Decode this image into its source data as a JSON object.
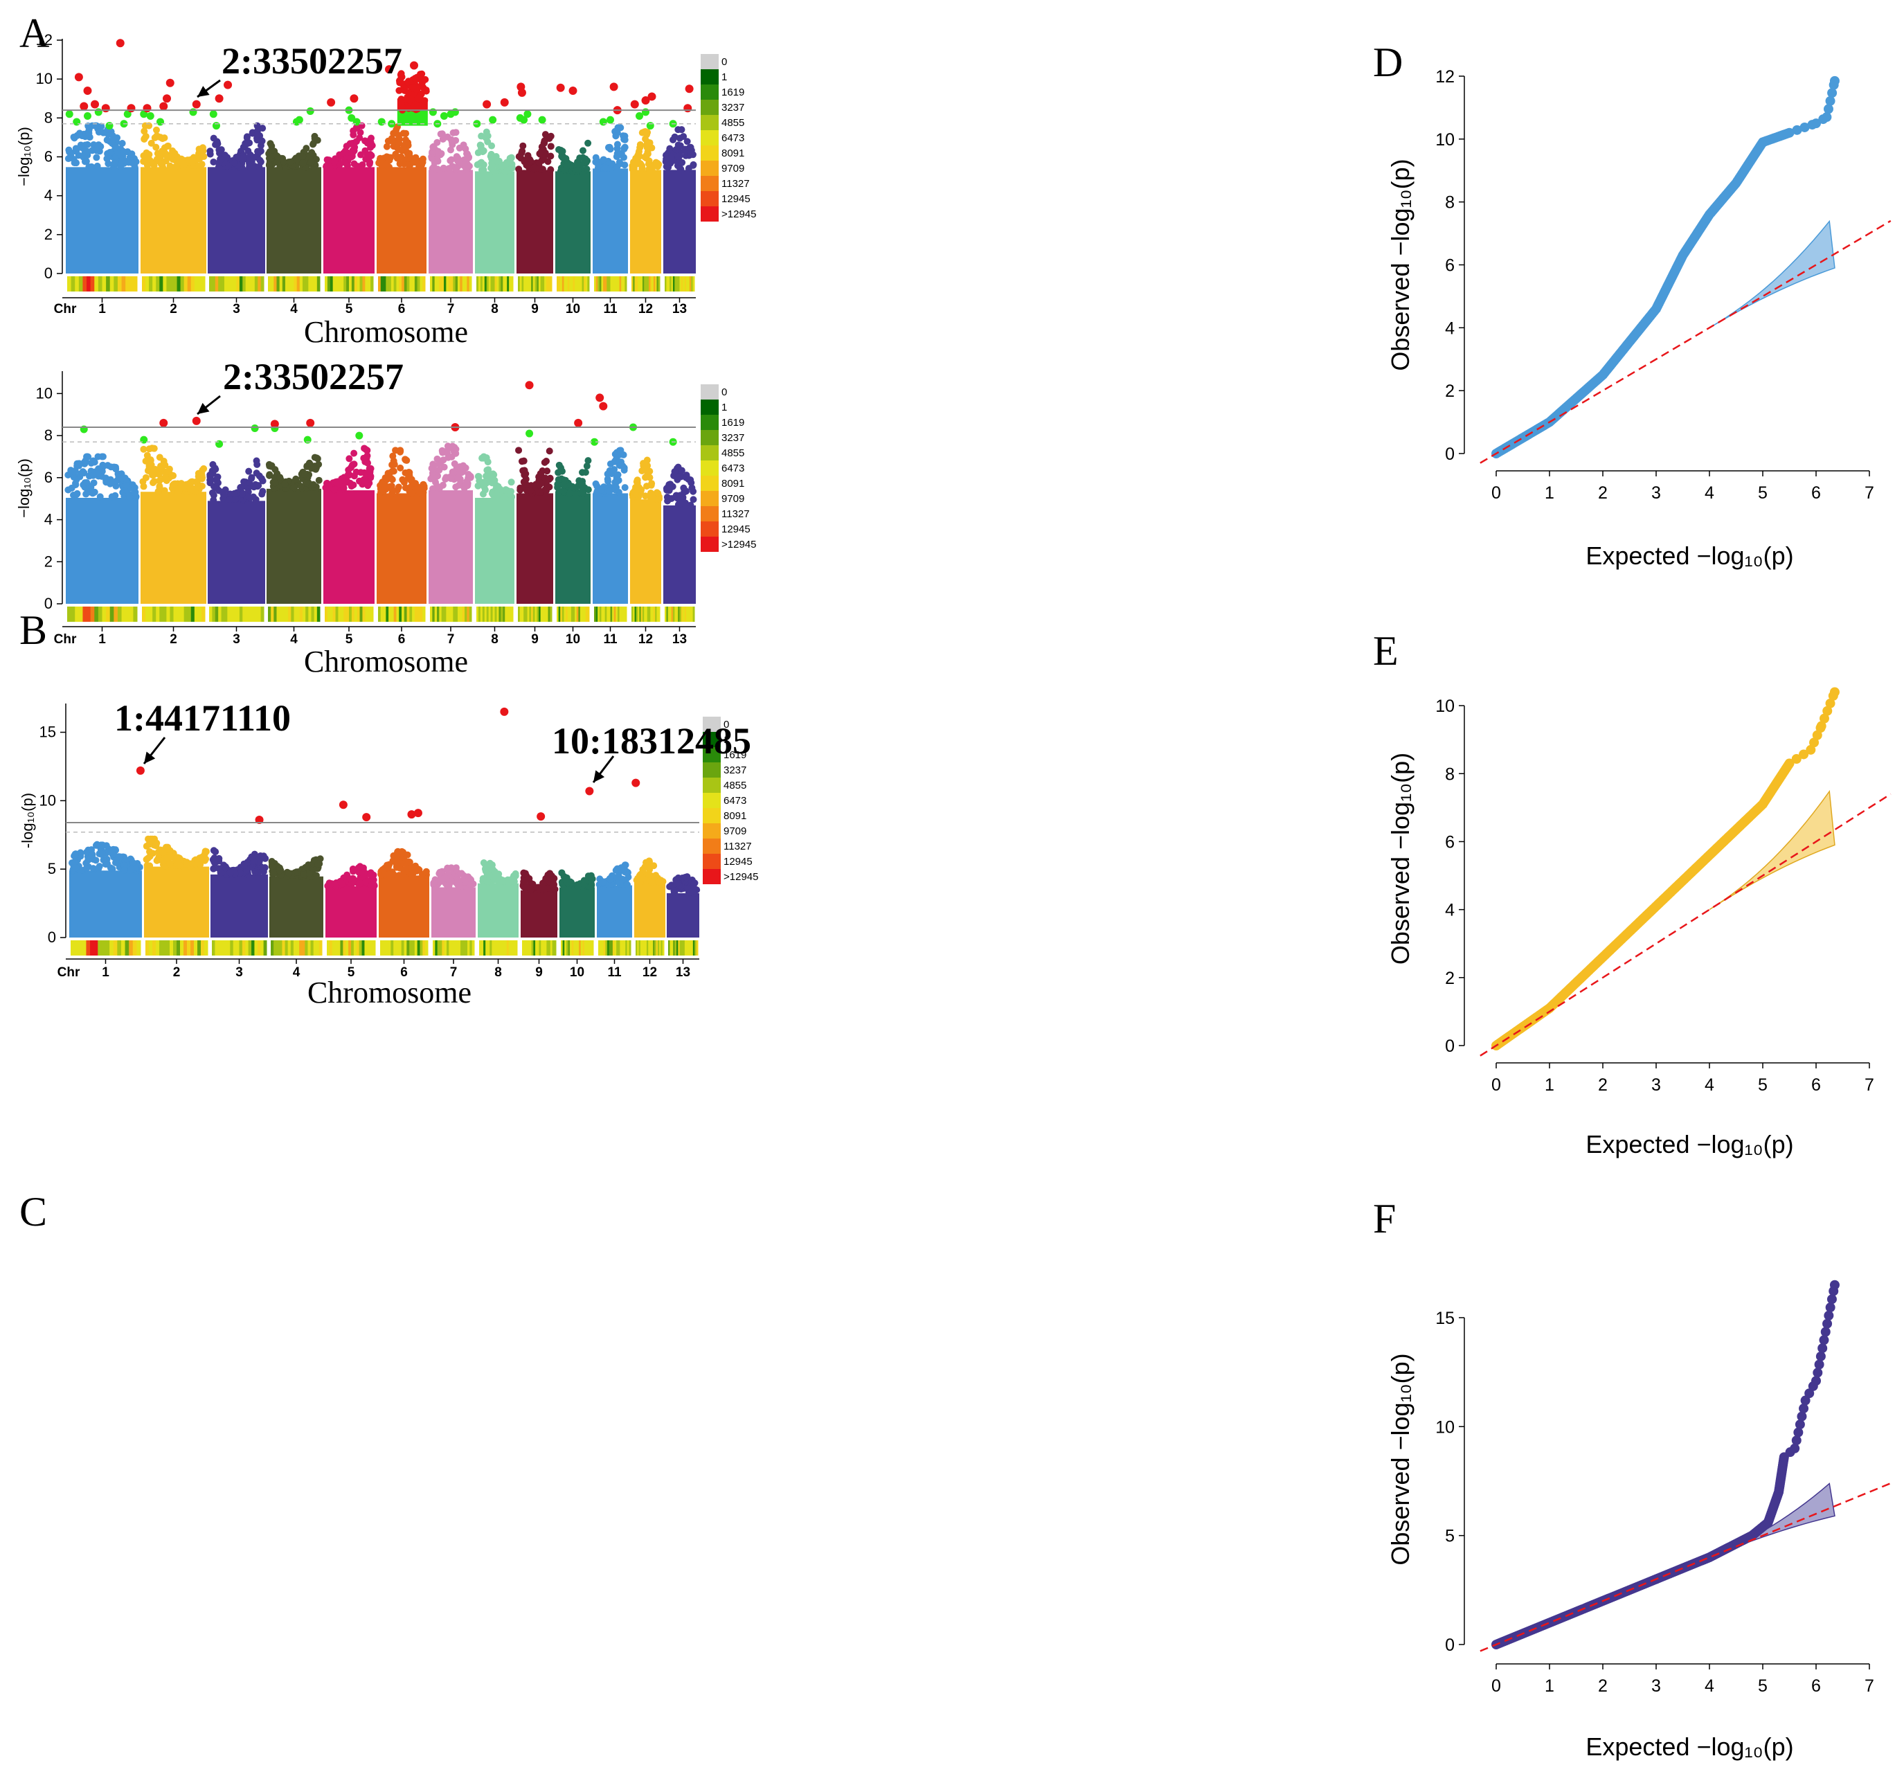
{
  "panel_letters": [
    "A",
    "B",
    "C",
    "D",
    "E",
    "F"
  ],
  "colors": {
    "chromosomes": [
      "#4393d7",
      "#f5bd24",
      "#453893",
      "#4b532d",
      "#d5166b",
      "#e5661a",
      "#d583b7",
      "#84d3a9",
      "#7b1830",
      "#22735a",
      "#4393d7",
      "#f5bd24",
      "#453893"
    ],
    "above_threshold": "#e8161a",
    "near_threshold": "#2ee81e",
    "threshold_solid": "#888888",
    "threshold_dashed": "#bbbbbb",
    "qq_points": [
      "#4a9ad8",
      "#f5bd24",
      "#44378f"
    ],
    "qq_line": "#e8161a",
    "density_scale": [
      "#d0d0d0",
      "#006400",
      "#2a8a0a",
      "#6aa50f",
      "#a9c515",
      "#e4e21a",
      "#f2d41a",
      "#f5aa1a",
      "#f27d18",
      "#ee4b17",
      "#e8161a"
    ]
  },
  "legend_labels": [
    "0",
    "1",
    "1619",
    "3237",
    "4855",
    "6473",
    "8091",
    "9709",
    "11327",
    "12945",
    ">12945"
  ],
  "chart_data": [
    {
      "type": "scatter",
      "subtype": "manhattan",
      "panel": "A",
      "xlabel": "Chromosome",
      "ylabel": "−log₁₀(p)",
      "chr_axis_label": "Chr",
      "categories": [
        "1",
        "2",
        "3",
        "4",
        "5",
        "6",
        "7",
        "8",
        "9",
        "10",
        "11",
        "12",
        "13"
      ],
      "ylim": [
        0,
        12
      ],
      "yticks": [
        0,
        2,
        4,
        6,
        8,
        10,
        12
      ],
      "thresholds": {
        "solid": 8.4,
        "dashed": 7.7
      },
      "chromosome_peak": [
        7.6,
        7.6,
        7.6,
        7.6,
        7.6,
        7.6,
        7.4,
        7.3,
        7.4,
        7.3,
        7.5,
        7.4,
        7.4
      ],
      "annotation": {
        "label": "2:33502257",
        "chromosome": 2,
        "position": 0.85,
        "value": 8.7
      },
      "significant_points": [
        [
          1,
          0.18,
          10.1
        ],
        [
          1,
          0.25,
          8.6
        ],
        [
          1,
          0.3,
          9.4
        ],
        [
          1,
          0.4,
          8.7
        ],
        [
          1,
          0.55,
          8.5
        ],
        [
          1,
          0.75,
          11.85
        ],
        [
          1,
          0.9,
          8.5
        ],
        [
          2,
          0.1,
          8.5
        ],
        [
          2,
          0.35,
          8.6
        ],
        [
          2,
          0.4,
          9.0
        ],
        [
          2,
          0.45,
          9.8
        ],
        [
          2,
          0.85,
          8.7
        ],
        [
          3,
          0.2,
          9.0
        ],
        [
          3,
          0.35,
          9.7
        ],
        [
          5,
          0.15,
          8.8
        ],
        [
          5,
          0.6,
          9.0
        ],
        [
          6,
          0.25,
          10.5
        ],
        [
          6,
          0.75,
          10.7
        ],
        [
          6,
          0.8,
          9.5
        ],
        [
          6,
          0.85,
          9.0
        ],
        [
          8,
          0.3,
          8.7
        ],
        [
          8,
          0.75,
          8.8
        ],
        [
          9,
          0.12,
          9.6
        ],
        [
          9,
          0.15,
          9.3
        ],
        [
          10,
          0.15,
          9.55
        ],
        [
          10,
          0.5,
          9.4
        ],
        [
          11,
          0.6,
          9.6
        ],
        [
          11,
          0.7,
          8.4
        ],
        [
          12,
          0.15,
          8.7
        ],
        [
          12,
          0.5,
          8.9
        ],
        [
          12,
          0.7,
          9.1
        ],
        [
          13,
          0.8,
          9.5
        ],
        [
          13,
          0.75,
          8.5
        ]
      ],
      "near_points": [
        [
          1,
          0.05,
          8.2
        ],
        [
          1,
          0.15,
          7.8
        ],
        [
          1,
          0.3,
          8.1
        ],
        [
          1,
          0.45,
          8.3
        ],
        [
          1,
          0.6,
          7.6
        ],
        [
          1,
          0.8,
          7.7
        ],
        [
          1,
          0.85,
          8.2
        ],
        [
          2,
          0.05,
          8.2
        ],
        [
          2,
          0.15,
          8.1
        ],
        [
          2,
          0.3,
          7.8
        ],
        [
          2,
          0.8,
          8.3
        ],
        [
          3,
          0.1,
          8.2
        ],
        [
          3,
          0.15,
          7.6
        ],
        [
          4,
          0.55,
          7.8
        ],
        [
          4,
          0.6,
          7.9
        ],
        [
          4,
          0.8,
          8.35
        ],
        [
          5,
          0.5,
          8.4
        ],
        [
          5,
          0.55,
          8.0
        ],
        [
          5,
          0.65,
          7.8
        ],
        [
          6,
          0.1,
          7.8
        ],
        [
          6,
          0.3,
          7.7
        ],
        [
          6,
          0.5,
          7.8
        ],
        [
          7,
          0.1,
          8.3
        ],
        [
          7,
          0.2,
          7.7
        ],
        [
          7,
          0.35,
          8.1
        ],
        [
          7,
          0.5,
          8.2
        ],
        [
          7,
          0.6,
          8.3
        ],
        [
          8,
          0.05,
          7.7
        ],
        [
          8,
          0.45,
          7.9
        ],
        [
          9,
          0.1,
          8.0
        ],
        [
          9,
          0.2,
          7.9
        ],
        [
          9,
          0.3,
          8.2
        ],
        [
          9,
          0.7,
          7.9
        ],
        [
          11,
          0.3,
          7.8
        ],
        [
          11,
          0.5,
          7.9
        ],
        [
          12,
          0.3,
          8.1
        ],
        [
          12,
          0.5,
          8.3
        ],
        [
          12,
          0.65,
          7.6
        ],
        [
          13,
          0.3,
          7.7
        ]
      ]
    },
    {
      "type": "scatter",
      "subtype": "manhattan",
      "panel": "B",
      "xlabel": "Chromosome",
      "ylabel": "−log₁₀(p)",
      "chr_axis_label": "Chr",
      "categories": [
        "1",
        "2",
        "3",
        "4",
        "5",
        "6",
        "7",
        "8",
        "9",
        "10",
        "11",
        "12",
        "13"
      ],
      "ylim": [
        0,
        11
      ],
      "yticks": [
        0,
        2,
        4,
        6,
        8,
        10
      ],
      "thresholds": {
        "solid": 8.4,
        "dashed": 7.7
      },
      "chromosome_peak": [
        7.0,
        7.4,
        6.8,
        7.6,
        7.5,
        7.3,
        7.5,
        7.0,
        7.3,
        7.3,
        7.3,
        6.9,
        6.5
      ],
      "annotation": {
        "label": "2:33502257",
        "chromosome": 2,
        "position": 0.85,
        "value": 8.7
      },
      "significant_points": [
        [
          2,
          0.35,
          8.6
        ],
        [
          2,
          0.85,
          8.7
        ],
        [
          4,
          0.15,
          8.55
        ],
        [
          4,
          0.8,
          8.6
        ],
        [
          7,
          0.6,
          8.4
        ],
        [
          9,
          0.35,
          10.4
        ],
        [
          10,
          0.65,
          8.6
        ],
        [
          11,
          0.2,
          9.8
        ],
        [
          11,
          0.3,
          9.4
        ]
      ],
      "near_points": [
        [
          1,
          0.25,
          8.3
        ],
        [
          2,
          0.05,
          7.8
        ],
        [
          3,
          0.2,
          7.6
        ],
        [
          3,
          0.82,
          8.35
        ],
        [
          4,
          0.15,
          8.35
        ],
        [
          4,
          0.75,
          7.8
        ],
        [
          5,
          0.7,
          8.0
        ],
        [
          9,
          0.35,
          8.1
        ],
        [
          11,
          0.05,
          7.7
        ],
        [
          12,
          0.1,
          8.4
        ],
        [
          13,
          0.3,
          7.7
        ]
      ]
    },
    {
      "type": "scatter",
      "subtype": "manhattan",
      "panel": "C",
      "xlabel": "Chromosome",
      "ylabel": "-log₁₀(p)",
      "chr_axis_label": "Chr",
      "categories": [
        "1",
        "2",
        "3",
        "4",
        "5",
        "6",
        "7",
        "8",
        "9",
        "10",
        "11",
        "12",
        "13"
      ],
      "ylim": [
        0,
        17
      ],
      "yticks": [
        0,
        5,
        10,
        15
      ],
      "thresholds": {
        "solid": 8.4,
        "dashed": 7.7
      },
      "chromosome_peak": [
        6.8,
        7.2,
        6.4,
        6.2,
        5.2,
        6.3,
        5.1,
        5.5,
        4.8,
        5.1,
        5.3,
        5.6,
        4.5
      ],
      "annotations": [
        {
          "label": "1:44171110",
          "chromosome": 1,
          "position": 0.98,
          "value": 12.2
        },
        {
          "label": "10:18312485",
          "chromosome": 10,
          "position": 0.85,
          "value": 10.7
        }
      ],
      "significant_points": [
        [
          1,
          0.98,
          12.2
        ],
        [
          3,
          0.85,
          8.6
        ],
        [
          5,
          0.35,
          9.7
        ],
        [
          5,
          0.8,
          8.8
        ],
        [
          6,
          0.65,
          9.0
        ],
        [
          6,
          0.78,
          9.1
        ],
        [
          8,
          0.65,
          16.5
        ],
        [
          9,
          0.55,
          8.85
        ],
        [
          10,
          0.85,
          10.7
        ],
        [
          12,
          0.05,
          11.3
        ]
      ],
      "near_points": []
    },
    {
      "type": "scatter",
      "subtype": "qq",
      "panel": "D",
      "xlabel": "Expected −log₁₀(p)",
      "ylabel": "Observed −log₁₀(p)",
      "xlim": [
        0,
        7
      ],
      "ylim": [
        0,
        12
      ],
      "xticks": [
        0,
        1,
        2,
        3,
        4,
        5,
        6,
        7
      ],
      "yticks": [
        0,
        2,
        4,
        6,
        8,
        10,
        12
      ],
      "curve": [
        [
          0,
          0
        ],
        [
          1,
          1.0
        ],
        [
          2,
          2.5
        ],
        [
          3,
          4.6
        ],
        [
          3.5,
          6.3
        ],
        [
          4,
          7.6
        ],
        [
          4.5,
          8.6
        ],
        [
          5,
          9.9
        ],
        [
          5.5,
          10.2
        ],
        [
          6,
          10.5
        ],
        [
          6.2,
          10.7
        ],
        [
          6.35,
          11.85
        ]
      ],
      "ci_upper_end": 7.6,
      "ci_lower_end": 5.9
    },
    {
      "type": "scatter",
      "subtype": "qq",
      "panel": "E",
      "xlabel": "Expected −log₁₀(p)",
      "ylabel": "Observed −log₁₀(p)",
      "xlim": [
        0,
        7
      ],
      "ylim": [
        0,
        11
      ],
      "xticks": [
        0,
        1,
        2,
        3,
        4,
        5,
        6,
        7
      ],
      "yticks": [
        0,
        2,
        4,
        6,
        8,
        10
      ],
      "curve": [
        [
          0,
          0
        ],
        [
          1,
          1.1
        ],
        [
          2,
          2.6
        ],
        [
          3,
          4.1
        ],
        [
          4,
          5.6
        ],
        [
          5,
          7.1
        ],
        [
          5.5,
          8.3
        ],
        [
          5.9,
          8.7
        ],
        [
          6.1,
          9.4
        ],
        [
          6.35,
          10.4
        ]
      ],
      "ci_upper_end": 7.7,
      "ci_lower_end": 5.9
    },
    {
      "type": "scatter",
      "subtype": "qq",
      "panel": "F",
      "xlabel": "Expected −log₁₀(p)",
      "ylabel": "Observed −log₁₀(p)",
      "xlim": [
        0,
        7
      ],
      "ylim": [
        0,
        17
      ],
      "xticks": [
        0,
        1,
        2,
        3,
        4,
        5,
        6,
        7
      ],
      "yticks": [
        0,
        5,
        10,
        15
      ],
      "curve": [
        [
          0,
          0
        ],
        [
          1,
          1.0
        ],
        [
          2,
          2.0
        ],
        [
          3,
          3.0
        ],
        [
          4,
          4.0
        ],
        [
          4.8,
          5.0
        ],
        [
          5.1,
          5.6
        ],
        [
          5.3,
          7.0
        ],
        [
          5.4,
          8.6
        ],
        [
          5.6,
          9.0
        ],
        [
          5.8,
          11.2
        ],
        [
          6.0,
          12.1
        ],
        [
          6.35,
          16.5
        ]
      ],
      "ci_upper_end": 7.6,
      "ci_lower_end": 5.9
    }
  ]
}
